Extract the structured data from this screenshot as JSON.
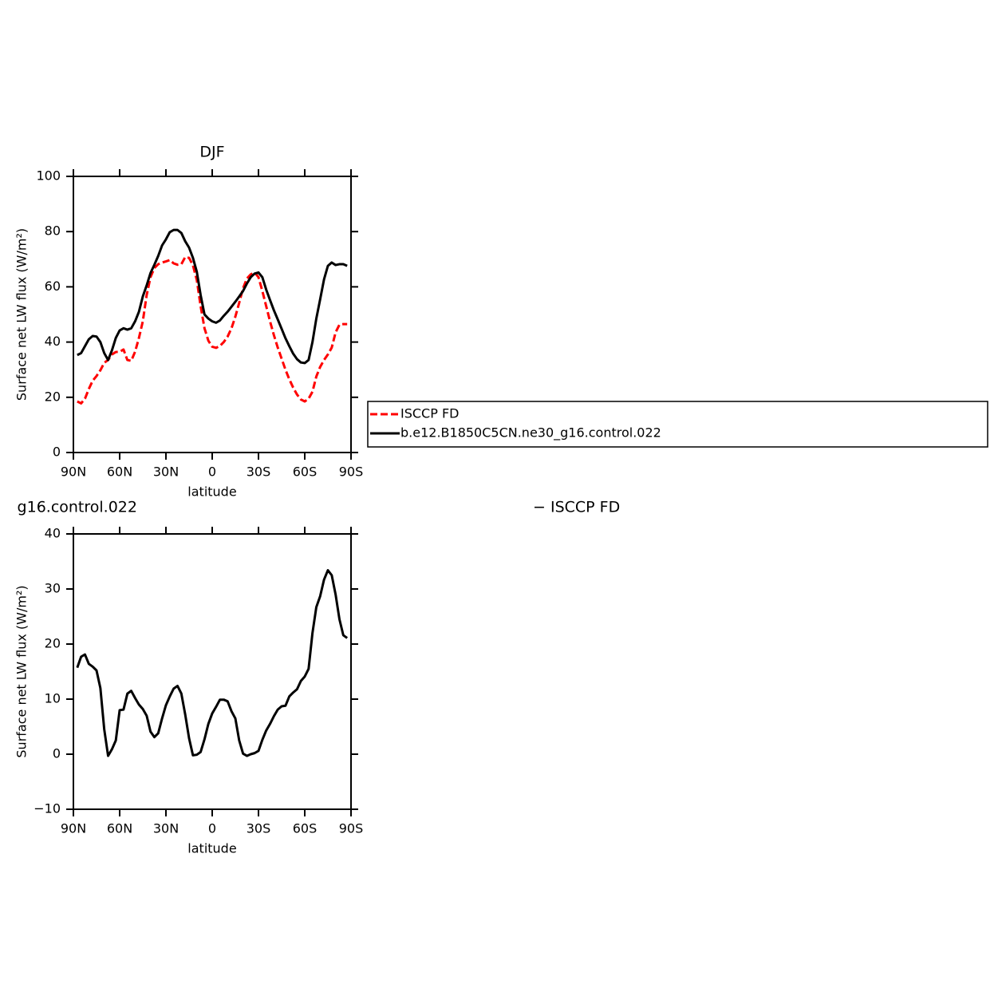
{
  "chart_data": [
    {
      "type": "line",
      "title": "DJF",
      "xlabel": "latitude",
      "ylabel": "Surface net LW flux (W/m²)",
      "x": [
        87.5,
        85,
        82.5,
        80,
        77.5,
        75,
        72.5,
        70,
        67.5,
        65,
        62.5,
        60,
        57.5,
        55,
        52.5,
        50,
        47.5,
        45,
        42.5,
        40,
        37.5,
        35,
        32.5,
        30,
        27.5,
        25,
        22.5,
        20,
        17.5,
        15,
        12.5,
        10,
        7.5,
        5,
        2.5,
        0,
        -2.5,
        -5,
        -7.5,
        -10,
        -12.5,
        -15,
        -17.5,
        -20,
        -22.5,
        -25,
        -27.5,
        -30,
        -32.5,
        -35,
        -37.5,
        -40,
        -42.5,
        -45,
        -47.5,
        -50,
        -52.5,
        -55,
        -57.5,
        -60,
        -62.5,
        -65,
        -67.5,
        -70,
        -72.5,
        -75,
        -77.5,
        -80,
        -82.5,
        -85,
        -87.5
      ],
      "series": [
        {
          "name": "ISCCP FD",
          "color": "#ff0000",
          "line_style": "dashed",
          "values": [
            18.5,
            17.8,
            19.5,
            23,
            26,
            27.7,
            29.8,
            32.5,
            33.5,
            35.5,
            36.4,
            36.5,
            37.3,
            33.5,
            33.2,
            36.5,
            41.5,
            47.5,
            57,
            63.5,
            66.8,
            68.2,
            68.8,
            69.2,
            69.7,
            68.5,
            68,
            68.2,
            70.8,
            70.5,
            67.8,
            62.5,
            53,
            45,
            40.5,
            38.3,
            37.9,
            38.6,
            40,
            42,
            45,
            49.2,
            54.2,
            59.5,
            63,
            64.5,
            65.2,
            63.5,
            58.5,
            53,
            47.5,
            42.5,
            38,
            34,
            30,
            26.5,
            23.5,
            21,
            19.2,
            18.5,
            19.5,
            22,
            27.5,
            31,
            33.5,
            35.5,
            38,
            43.5,
            46.3,
            46.5,
            46.5
          ]
        },
        {
          "name": "b.e12.B1850C5CN.ne30_g16.control.022",
          "color": "#000000",
          "line_style": "solid",
          "values": [
            35.3,
            36,
            38.5,
            41,
            42.2,
            42,
            40,
            36,
            33.5,
            37,
            41.5,
            44.2,
            45,
            44.5,
            45,
            47.5,
            51,
            56.5,
            60.5,
            65,
            68,
            71.2,
            75,
            77.2,
            79.8,
            80.6,
            80.6,
            79.5,
            76.5,
            74.2,
            70.5,
            65.5,
            57,
            50,
            48.5,
            47.5,
            47,
            47.8,
            49.5,
            51,
            52.8,
            54.6,
            56.5,
            58.5,
            61.2,
            63.5,
            64.8,
            65.2,
            63.5,
            59,
            55.2,
            51.5,
            48.2,
            44.8,
            41.4,
            38.5,
            35.8,
            33.8,
            32.6,
            32.4,
            33.5,
            40,
            48.5,
            55.5,
            62.7,
            67.6,
            68.8,
            67.9,
            68.2,
            68.2,
            67.6
          ]
        }
      ],
      "xlim": [
        90,
        -90
      ],
      "xticks": [
        {
          "value": 90,
          "label": "90N"
        },
        {
          "value": 60,
          "label": "60N"
        },
        {
          "value": 30,
          "label": "30N"
        },
        0,
        {
          "value": -30,
          "label": "30S"
        },
        {
          "value": -60,
          "label": "60S"
        },
        {
          "value": -90,
          "label": "90S"
        }
      ],
      "ylim": [
        0,
        100
      ],
      "yticks": [
        0,
        20,
        40,
        60,
        80,
        100
      ],
      "legend": "right"
    },
    {
      "type": "line",
      "title_parts": [
        "g16.control.022",
        "− ISCCP FD"
      ],
      "xlabel": "latitude",
      "ylabel": "Surface net LW flux (W/m²)",
      "x": [
        87.5,
        85,
        82.5,
        80,
        77.5,
        75,
        72.5,
        70,
        67.5,
        65,
        62.5,
        60,
        57.5,
        55,
        52.5,
        50,
        47.5,
        45,
        42.5,
        40,
        37.5,
        35,
        32.5,
        30,
        27.5,
        25,
        22.5,
        20,
        17.5,
        15,
        12.5,
        10,
        7.5,
        5,
        2.5,
        0,
        -2.5,
        -5,
        -7.5,
        -10,
        -12.5,
        -15,
        -17.5,
        -20,
        -22.5,
        -25,
        -27.5,
        -30,
        -32.5,
        -35,
        -37.5,
        -40,
        -42.5,
        -45,
        -47.5,
        -50,
        -52.5,
        -55,
        -57.5,
        -60,
        -62.5,
        -65,
        -67.5,
        -70,
        -72.5,
        -75,
        -77.5,
        -80,
        -82.5,
        -85,
        -87.5
      ],
      "series": [
        {
          "color": "#000000",
          "line_style": "solid",
          "values": [
            15.7,
            17.7,
            18.1,
            16.4,
            15.9,
            15.2,
            12,
            4.5,
            -0.3,
            0.9,
            2.5,
            8,
            8.1,
            11,
            11.5,
            10.2,
            9,
            8.2,
            7,
            4.1,
            3.1,
            3.8,
            6.5,
            8.9,
            10.5,
            11.9,
            12.4,
            11,
            7.2,
            2.9,
            -0.2,
            -0.1,
            0.4,
            2.7,
            5.5,
            7.4,
            8.6,
            9.9,
            9.9,
            9.6,
            7.8,
            6.5,
            2.5,
            0.1,
            -0.3,
            0,
            0.2,
            0.6,
            2.6,
            4.3,
            5.5,
            6.9,
            8.1,
            8.7,
            8.8,
            10.5,
            11.2,
            11.8,
            13.3,
            14.1,
            15.5,
            22,
            26.7,
            28.7,
            31.7,
            33.4,
            32.5,
            29,
            24.5,
            21.6,
            21.1
          ]
        }
      ],
      "xlim": [
        90,
        -90
      ],
      "xticks": [
        {
          "value": 90,
          "label": "90N"
        },
        {
          "value": 60,
          "label": "60N"
        },
        {
          "value": 30,
          "label": "30N"
        },
        0,
        {
          "value": -30,
          "label": "30S"
        },
        {
          "value": -60,
          "label": "60S"
        },
        {
          "value": -90,
          "label": "90S"
        }
      ],
      "ylim": [
        -10,
        40
      ],
      "yticks": [
        {
          "value": -10,
          "label": "−10"
        },
        0,
        10,
        20,
        30,
        40
      ]
    }
  ]
}
